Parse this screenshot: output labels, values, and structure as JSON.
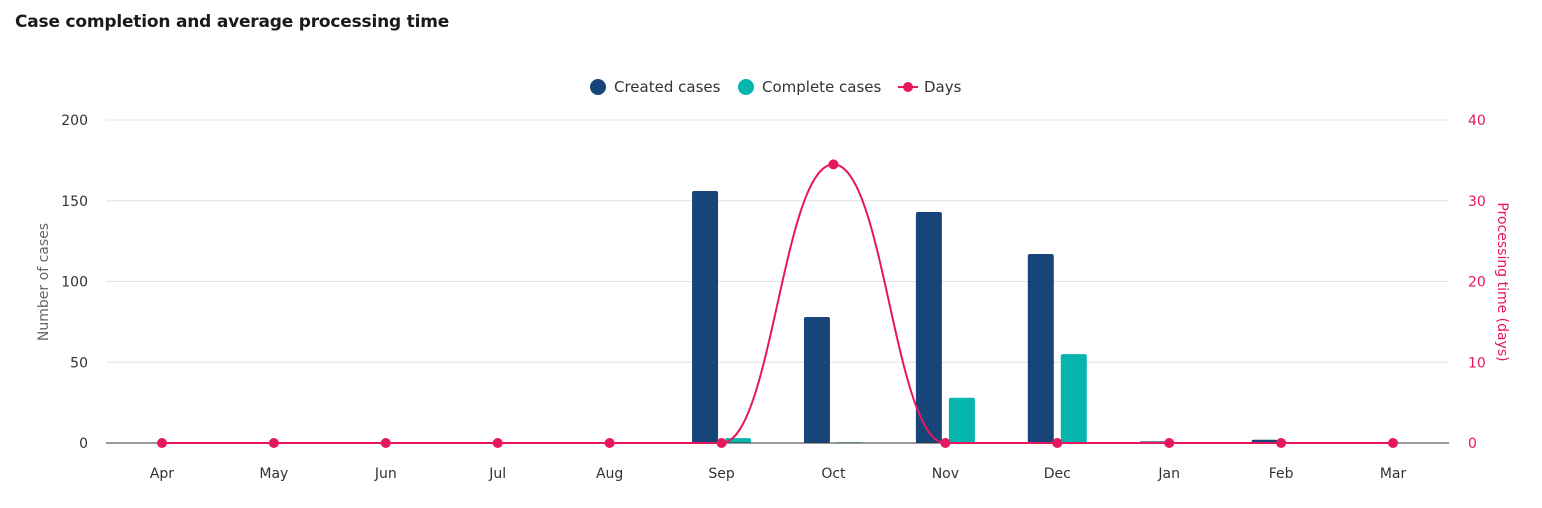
{
  "title": "Case completion and average processing time",
  "colors": {
    "created": "#17457a",
    "complete": "#05b5ae",
    "days": "#e8175d",
    "grid": "#e0e0e0",
    "axis": "#333333"
  },
  "legend": {
    "created": "Created cases",
    "complete": "Complete cases",
    "days": "Days"
  },
  "chart_data": {
    "type": "bar",
    "title": "Case completion and average processing time",
    "categories": [
      "Apr",
      "May",
      "Jun",
      "Jul",
      "Aug",
      "Sep",
      "Oct",
      "Nov",
      "Dec",
      "Jan",
      "Feb",
      "Mar"
    ],
    "series": [
      {
        "name": "Created cases",
        "type": "bar",
        "axis": "left",
        "values": [
          0,
          0,
          0,
          0,
          0,
          156,
          78,
          143,
          117,
          1,
          2,
          0
        ]
      },
      {
        "name": "Complete cases",
        "type": "bar",
        "axis": "left",
        "values": [
          0,
          0,
          0,
          0,
          0,
          3,
          0.5,
          28,
          55,
          0.5,
          0.5,
          0
        ]
      },
      {
        "name": "Days",
        "type": "line",
        "axis": "right",
        "values": [
          0,
          0,
          0,
          0,
          0,
          0,
          34.5,
          0,
          0,
          0,
          0,
          0
        ]
      }
    ],
    "ylabel": "Number of cases",
    "ylim": [
      0,
      200
    ],
    "yticks": [
      "0",
      "50",
      "100",
      "150",
      "200"
    ],
    "y2label": "Processing time (days)",
    "y2lim": [
      0,
      40
    ],
    "y2ticks": [
      "0",
      "10",
      "20",
      "30",
      "40"
    ],
    "grid": true,
    "legend_position": "top-center"
  }
}
